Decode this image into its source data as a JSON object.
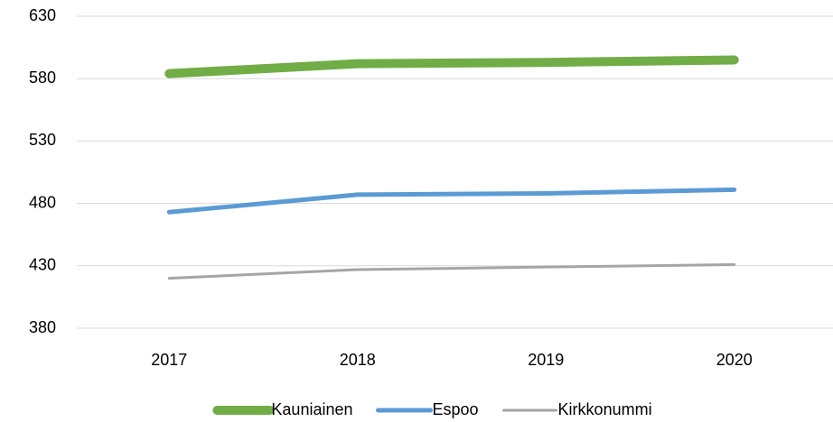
{
  "chart_data": {
    "type": "line",
    "categories": [
      "2017",
      "2018",
      "2019",
      "2020"
    ],
    "series": [
      {
        "name": "Kauniainen",
        "color": "#70ad47",
        "values": [
          584,
          592,
          593,
          595
        ]
      },
      {
        "name": "Espoo",
        "color": "#5b9bd5",
        "values": [
          473,
          487,
          488,
          491
        ]
      },
      {
        "name": "Kirkkonummi",
        "color": "#a5a5a5",
        "values": [
          420,
          427,
          429,
          431
        ]
      }
    ],
    "ylim": [
      380,
      630
    ],
    "yticks": [
      380,
      430,
      480,
      530,
      580,
      630
    ],
    "grid": true,
    "legend": "bottom"
  }
}
